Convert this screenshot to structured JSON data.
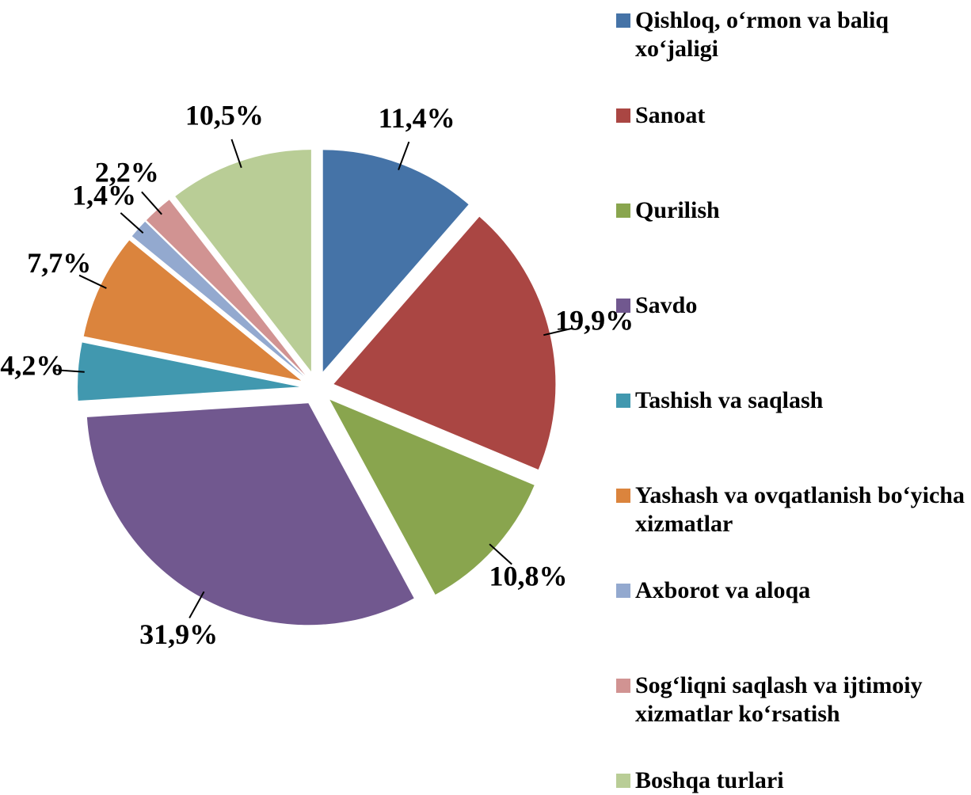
{
  "chart_data": {
    "type": "pie",
    "categories": [
      "Qishloq, o‘rmon va baliq xo‘jaligi",
      "Sanoat",
      "Qurilish",
      "Savdo",
      "Tashish va saqlash",
      "Yashash va ovqatlanish bo‘yicha xizmatlar",
      "Axborot va aloqa",
      "Sog‘liqni saqlash va ijtimoiy xizmatlar ko‘rsatish",
      "Boshqa turlari"
    ],
    "values": [
      11.4,
      19.9,
      10.8,
      31.9,
      4.2,
      7.7,
      1.4,
      2.2,
      10.5
    ],
    "value_labels": [
      "11,4%",
      "19,9%",
      "10,8%",
      "31,9%",
      "4,2%",
      "7,7%",
      "1,4%",
      "2,2%",
      "10,5%"
    ],
    "colors": [
      "#4573a7",
      "#aa4643",
      "#89a54e",
      "#71588f",
      "#4198af",
      "#db843d",
      "#93a9cf",
      "#d19392",
      "#b9cd96"
    ],
    "legend": "right"
  }
}
